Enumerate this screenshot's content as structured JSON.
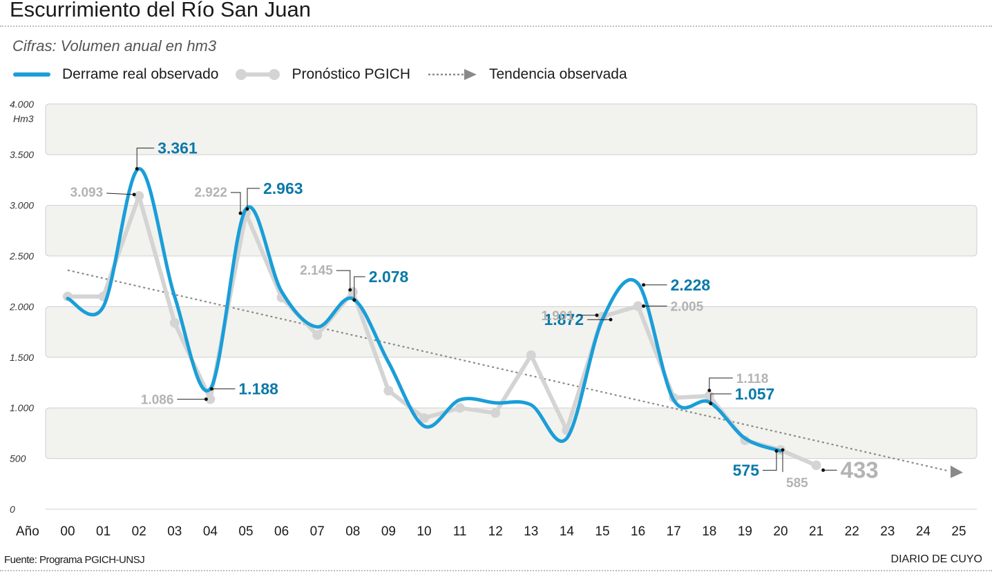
{
  "header": {
    "title": "Escurrimiento del Río San Juan",
    "subtitle": "Cifras: Volumen anual en hm3"
  },
  "legend": {
    "items": [
      {
        "label": "Derrame real observado",
        "color": "#1a9ed8"
      },
      {
        "label": "Pronóstico PGICH",
        "color": "#d4d4d4"
      },
      {
        "label": "Tendencia observada",
        "color": "#8a8a8a"
      }
    ]
  },
  "footer": {
    "source": "Fuente: Programa PGICH-UNSJ",
    "brand": "DIARIO DE CUYO"
  },
  "chart_data": {
    "type": "line",
    "title": "Escurrimiento del Río San Juan",
    "subtitle": "Cifras: Volumen anual en hm3",
    "xlabel": "Año",
    "ylabel": "Hm3",
    "ylim": [
      0,
      4000
    ],
    "y_ticks": [
      0,
      500,
      1000,
      1500,
      2000,
      2500,
      3000,
      3500,
      4000
    ],
    "y_tick_labels": [
      "0",
      "500",
      "1.000",
      "1.500",
      "2.000",
      "2.500",
      "3.000",
      "3.500",
      "4.000"
    ],
    "x": [
      "00",
      "01",
      "02",
      "03",
      "04",
      "05",
      "06",
      "07",
      "08",
      "09",
      "10",
      "11",
      "12",
      "13",
      "14",
      "15",
      "16",
      "17",
      "18",
      "19",
      "20",
      "21",
      "22",
      "23",
      "24",
      "25"
    ],
    "grid": "alternating horizontal bands",
    "series": [
      {
        "name": "Derrame real observado",
        "color": "#1a9ed8",
        "smooth": true,
        "x": [
          "00",
          "01",
          "02",
          "03",
          "04",
          "05",
          "06",
          "07",
          "08",
          "09",
          "10",
          "11",
          "12",
          "13",
          "14",
          "15",
          "16",
          "17",
          "18",
          "19",
          "20"
        ],
        "values": [
          2080,
          2000,
          3361,
          2100,
          1188,
          2963,
          2150,
          1800,
          2078,
          1450,
          820,
          1080,
          1050,
          1030,
          700,
          1872,
          2228,
          1080,
          1057,
          700,
          575
        ]
      },
      {
        "name": "Pronóstico PGICH",
        "color": "#d4d4d4",
        "smooth": false,
        "x": [
          "00",
          "01",
          "02",
          "03",
          "04",
          "05",
          "06",
          "07",
          "08",
          "09",
          "10",
          "11",
          "12",
          "13",
          "14",
          "15",
          "16",
          "17",
          "18",
          "19",
          "20",
          "21"
        ],
        "values": [
          2100,
          2100,
          3093,
          1840,
          1086,
          2922,
          2090,
          1720,
          2145,
          1170,
          900,
          1000,
          950,
          1520,
          780,
          1901,
          2005,
          1100,
          1118,
          680,
          585,
          433
        ]
      },
      {
        "name": "Tendencia observada",
        "color": "#8a8a8a",
        "x": [
          "00",
          "25"
        ],
        "values": [
          2360,
          390
        ]
      }
    ],
    "annotations": [
      {
        "text": "3.093",
        "x": "02",
        "y": 3093,
        "series": "Pronóstico PGICH"
      },
      {
        "text": "3.361",
        "x": "02",
        "y": 3361,
        "series": "Derrame real observado"
      },
      {
        "text": "1.086",
        "x": "04",
        "y": 1086,
        "series": "Pronóstico PGICH"
      },
      {
        "text": "1.188",
        "x": "04",
        "y": 1188,
        "series": "Derrame real observado"
      },
      {
        "text": "2.922",
        "x": "05",
        "y": 2922,
        "series": "Pronóstico PGICH"
      },
      {
        "text": "2.963",
        "x": "05",
        "y": 2963,
        "series": "Derrame real observado"
      },
      {
        "text": "2.145",
        "x": "08",
        "y": 2145,
        "series": "Pronóstico PGICH"
      },
      {
        "text": "2.078",
        "x": "08",
        "y": 2078,
        "series": "Derrame real observado"
      },
      {
        "text": "1.872",
        "x": "15",
        "y": 1872,
        "series": "Derrame real observado"
      },
      {
        "text": "1.901",
        "x": "15",
        "y": 1901,
        "series": "Pronóstico PGICH"
      },
      {
        "text": "2.228",
        "x": "16",
        "y": 2228,
        "series": "Derrame real observado"
      },
      {
        "text": "2.005",
        "x": "16",
        "y": 2005,
        "series": "Pronóstico PGICH"
      },
      {
        "text": "1.118",
        "x": "18",
        "y": 1118,
        "series": "Pronóstico PGICH"
      },
      {
        "text": "1.057",
        "x": "18",
        "y": 1057,
        "series": "Derrame real observado"
      },
      {
        "text": "575",
        "x": "20",
        "y": 575,
        "series": "Derrame real observado"
      },
      {
        "text": "585",
        "x": "20",
        "y": 585,
        "series": "Pronóstico PGICH"
      },
      {
        "text": "433",
        "x": "21",
        "y": 433,
        "series": "Pronóstico PGICH"
      }
    ]
  }
}
